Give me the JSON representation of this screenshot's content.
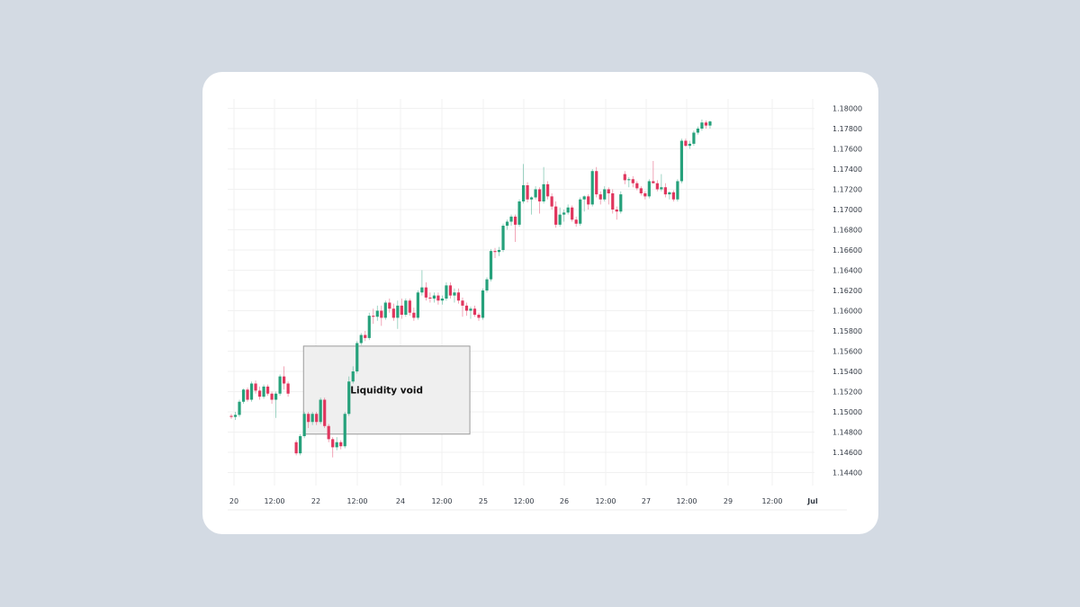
{
  "chart_data": {
    "type": "candlestick",
    "title": "",
    "xlabel": "",
    "ylabel": "",
    "ylim": [
      1.143,
      1.181
    ],
    "y_ticks": [
      "1.18000",
      "1.17800",
      "1.17600",
      "1.17400",
      "1.17200",
      "1.17000",
      "1.16800",
      "1.16600",
      "1.16400",
      "1.16200",
      "1.16000",
      "1.15800",
      "1.15600",
      "1.15400",
      "1.15200",
      "1.15000",
      "1.14800",
      "1.14600",
      "1.14400"
    ],
    "x_ticks": [
      "20",
      "12:00",
      "22",
      "12:00",
      "24",
      "12:00",
      "25",
      "12:00",
      "26",
      "12:00",
      "27",
      "12:00",
      "29",
      "12:00",
      "Jul"
    ],
    "colors": {
      "up": "#26a17b",
      "down": "#e0365e",
      "void_fill": "#efefef",
      "void_border": "#9a9a9a",
      "grid": "#f1f1f1"
    },
    "annotation": {
      "label": "Liquidity void",
      "x_from": 17.8,
      "x_to": 58.8,
      "y_from": 1.1478,
      "y_to": 1.1565
    },
    "candles": [
      [
        1.1496,
        1.1498,
        1.1493,
        1.1495
      ],
      [
        1.1495,
        1.15,
        1.1492,
        1.1497
      ],
      [
        1.1497,
        1.1512,
        1.1495,
        1.151
      ],
      [
        1.151,
        1.1523,
        1.1508,
        1.1522
      ],
      [
        1.1522,
        1.1524,
        1.151,
        1.1512
      ],
      [
        1.1512,
        1.153,
        1.151,
        1.1528
      ],
      [
        1.1528,
        1.1531,
        1.1518,
        1.1521
      ],
      [
        1.1521,
        1.1525,
        1.1512,
        1.1515
      ],
      [
        1.1515,
        1.1527,
        1.1513,
        1.1525
      ],
      [
        1.1525,
        1.1527,
        1.1516,
        1.1518
      ],
      [
        1.1518,
        1.152,
        1.1508,
        1.1512
      ],
      [
        1.1512,
        1.152,
        1.1494,
        1.1518
      ],
      [
        1.1518,
        1.1537,
        1.1516,
        1.1535
      ],
      [
        1.1535,
        1.1545,
        1.1522,
        1.1528
      ],
      [
        1.1528,
        1.153,
        1.1515,
        1.1518
      ],
      [
        1.147,
        1.1472,
        1.1457,
        1.1459
      ],
      [
        1.1459,
        1.1478,
        1.1457,
        1.1476
      ],
      [
        1.1476,
        1.15,
        1.1474,
        1.1498
      ],
      [
        1.1498,
        1.15,
        1.1484,
        1.149
      ],
      [
        1.149,
        1.15,
        1.1487,
        1.1498
      ],
      [
        1.1498,
        1.15,
        1.1487,
        1.149
      ],
      [
        1.149,
        1.1514,
        1.1488,
        1.1512
      ],
      [
        1.1512,
        1.1514,
        1.1484,
        1.1486
      ],
      [
        1.1486,
        1.1488,
        1.147,
        1.1473
      ],
      [
        1.1473,
        1.1475,
        1.1455,
        1.1465
      ],
      [
        1.1465,
        1.1475,
        1.1462,
        1.147
      ],
      [
        1.147,
        1.1472,
        1.1463,
        1.1466
      ],
      [
        1.1466,
        1.15,
        1.1464,
        1.1498
      ],
      [
        1.1498,
        1.1535,
        1.1496,
        1.153
      ],
      [
        1.153,
        1.1545,
        1.1528,
        1.154
      ],
      [
        1.154,
        1.157,
        1.1538,
        1.1568
      ],
      [
        1.1568,
        1.1578,
        1.1566,
        1.1576
      ],
      [
        1.1576,
        1.158,
        1.157,
        1.1573
      ],
      [
        1.1573,
        1.1598,
        1.1571,
        1.1595
      ],
      [
        1.1595,
        1.1602,
        1.1587,
        1.1594
      ],
      [
        1.1594,
        1.1605,
        1.159,
        1.16
      ],
      [
        1.16,
        1.1605,
        1.1585,
        1.1593
      ],
      [
        1.1593,
        1.161,
        1.1591,
        1.1608
      ],
      [
        1.1608,
        1.1612,
        1.1598,
        1.1602
      ],
      [
        1.1602,
        1.1607,
        1.159,
        1.1593
      ],
      [
        1.1593,
        1.161,
        1.1582,
        1.1605
      ],
      [
        1.1605,
        1.1612,
        1.1592,
        1.1596
      ],
      [
        1.1596,
        1.1612,
        1.1594,
        1.161
      ],
      [
        1.161,
        1.1612,
        1.1595,
        1.1598
      ],
      [
        1.1598,
        1.1603,
        1.159,
        1.1593
      ],
      [
        1.1593,
        1.162,
        1.1591,
        1.1618
      ],
      [
        1.1618,
        1.164,
        1.1615,
        1.1623
      ],
      [
        1.1623,
        1.1628,
        1.161,
        1.1613
      ],
      [
        1.1613,
        1.1618,
        1.1608,
        1.1612
      ],
      [
        1.1612,
        1.1618,
        1.1608,
        1.1615
      ],
      [
        1.1615,
        1.1618,
        1.1606,
        1.161
      ],
      [
        1.161,
        1.1615,
        1.1606,
        1.1612
      ],
      [
        1.1612,
        1.1628,
        1.161,
        1.1625
      ],
      [
        1.1625,
        1.1628,
        1.1612,
        1.1615
      ],
      [
        1.1615,
        1.1622,
        1.1608,
        1.1618
      ],
      [
        1.1618,
        1.1622,
        1.1607,
        1.161
      ],
      [
        1.161,
        1.1613,
        1.1594,
        1.1605
      ],
      [
        1.1605,
        1.1608,
        1.1595,
        1.16
      ],
      [
        1.16,
        1.1604,
        1.1592,
        1.1602
      ],
      [
        1.1602,
        1.1605,
        1.1594,
        1.1596
      ],
      [
        1.1596,
        1.1598,
        1.159,
        1.1593
      ],
      [
        1.1593,
        1.1622,
        1.1591,
        1.162
      ],
      [
        1.162,
        1.1633,
        1.1618,
        1.1631
      ],
      [
        1.1631,
        1.1661,
        1.1629,
        1.1659
      ],
      [
        1.1659,
        1.1662,
        1.1652,
        1.1658
      ],
      [
        1.1658,
        1.1663,
        1.1654,
        1.166
      ],
      [
        1.166,
        1.1686,
        1.1658,
        1.1684
      ],
      [
        1.1684,
        1.169,
        1.168,
        1.1688
      ],
      [
        1.1688,
        1.1695,
        1.1684,
        1.1693
      ],
      [
        1.1693,
        1.1695,
        1.1668,
        1.1685
      ],
      [
        1.1685,
        1.171,
        1.1683,
        1.1708
      ],
      [
        1.1708,
        1.1745,
        1.1706,
        1.1724
      ],
      [
        1.1724,
        1.1727,
        1.1707,
        1.171
      ],
      [
        1.171,
        1.1713,
        1.1695,
        1.1712
      ],
      [
        1.1712,
        1.1723,
        1.171,
        1.172
      ],
      [
        1.172,
        1.1722,
        1.1696,
        1.1708
      ],
      [
        1.1708,
        1.1742,
        1.1706,
        1.1725
      ],
      [
        1.1725,
        1.1728,
        1.171,
        1.1713
      ],
      [
        1.1713,
        1.1716,
        1.17,
        1.1703
      ],
      [
        1.1703,
        1.1708,
        1.1682,
        1.1685
      ],
      [
        1.1685,
        1.1702,
        1.1683,
        1.1695
      ],
      [
        1.1695,
        1.17,
        1.1688,
        1.1697
      ],
      [
        1.1697,
        1.1705,
        1.1695,
        1.1702
      ],
      [
        1.1702,
        1.1704,
        1.1688,
        1.169
      ],
      [
        1.169,
        1.1693,
        1.1683,
        1.1686
      ],
      [
        1.1686,
        1.1712,
        1.1684,
        1.171
      ],
      [
        1.171,
        1.1714,
        1.1698,
        1.1713
      ],
      [
        1.1713,
        1.1715,
        1.17,
        1.1705
      ],
      [
        1.1705,
        1.174,
        1.1703,
        1.1738
      ],
      [
        1.1738,
        1.1742,
        1.1712,
        1.1715
      ],
      [
        1.1715,
        1.1718,
        1.1705,
        1.171
      ],
      [
        1.171,
        1.1723,
        1.1708,
        1.172
      ],
      [
        1.172,
        1.1722,
        1.1705,
        1.1716
      ],
      [
        1.1716,
        1.172,
        1.1696,
        1.17
      ],
      [
        1.17,
        1.1703,
        1.169,
        1.1698
      ],
      [
        1.1698,
        1.1718,
        1.1696,
        1.1715
      ],
      [
        1.1735,
        1.1738,
        1.1725,
        1.1729
      ],
      [
        1.1729,
        1.1732,
        1.1722,
        1.173
      ],
      [
        1.173,
        1.1733,
        1.1722,
        1.1726
      ],
      [
        1.1726,
        1.1728,
        1.1719,
        1.1721
      ],
      [
        1.1721,
        1.1723,
        1.1714,
        1.1716
      ],
      [
        1.1716,
        1.1718,
        1.171,
        1.1713
      ],
      [
        1.1713,
        1.173,
        1.1711,
        1.1728
      ],
      [
        1.1728,
        1.1748,
        1.1726,
        1.1726
      ],
      [
        1.1726,
        1.1729,
        1.1718,
        1.172
      ],
      [
        1.172,
        1.1735,
        1.1718,
        1.1722
      ],
      [
        1.1722,
        1.1726,
        1.1712,
        1.1715
      ],
      [
        1.1715,
        1.1718,
        1.171,
        1.1717
      ],
      [
        1.1717,
        1.1719,
        1.1708,
        1.171
      ],
      [
        1.171,
        1.173,
        1.1708,
        1.1728
      ],
      [
        1.1728,
        1.177,
        1.1726,
        1.1768
      ],
      [
        1.1768,
        1.177,
        1.1762,
        1.1763
      ],
      [
        1.1763,
        1.1768,
        1.176,
        1.1765
      ],
      [
        1.1765,
        1.1778,
        1.1763,
        1.1776
      ],
      [
        1.1776,
        1.1782,
        1.1774,
        1.178
      ],
      [
        1.178,
        1.1789,
        1.1778,
        1.1786
      ],
      [
        1.1786,
        1.1788,
        1.178,
        1.1783
      ],
      [
        1.1783,
        1.1788,
        1.178,
        1.1787
      ]
    ],
    "x_index": [
      0,
      1,
      2,
      3,
      4,
      5,
      6,
      7,
      8,
      9,
      10,
      11,
      12,
      13,
      14,
      16,
      17,
      18,
      19,
      20,
      21,
      22,
      23,
      24,
      25,
      26,
      27,
      28,
      29,
      30,
      31,
      32,
      33,
      34,
      35,
      36,
      37,
      38,
      39,
      40,
      41,
      42,
      43,
      44,
      45,
      46,
      47,
      48,
      49,
      50,
      51,
      52,
      53,
      54,
      55,
      56,
      57,
      58,
      59,
      60,
      61,
      62,
      63,
      64,
      65,
      66,
      67,
      68,
      69,
      70,
      71,
      72,
      73,
      74,
      75,
      76,
      77,
      78,
      79,
      80,
      81,
      82,
      83,
      84,
      85,
      86,
      87,
      88,
      89,
      90,
      91,
      92,
      93,
      94,
      95,
      96,
      97,
      98,
      99,
      100,
      101,
      102,
      103,
      104,
      105,
      106,
      107,
      108,
      109,
      110,
      111,
      112,
      113,
      114,
      115,
      116,
      117,
      118
    ]
  }
}
